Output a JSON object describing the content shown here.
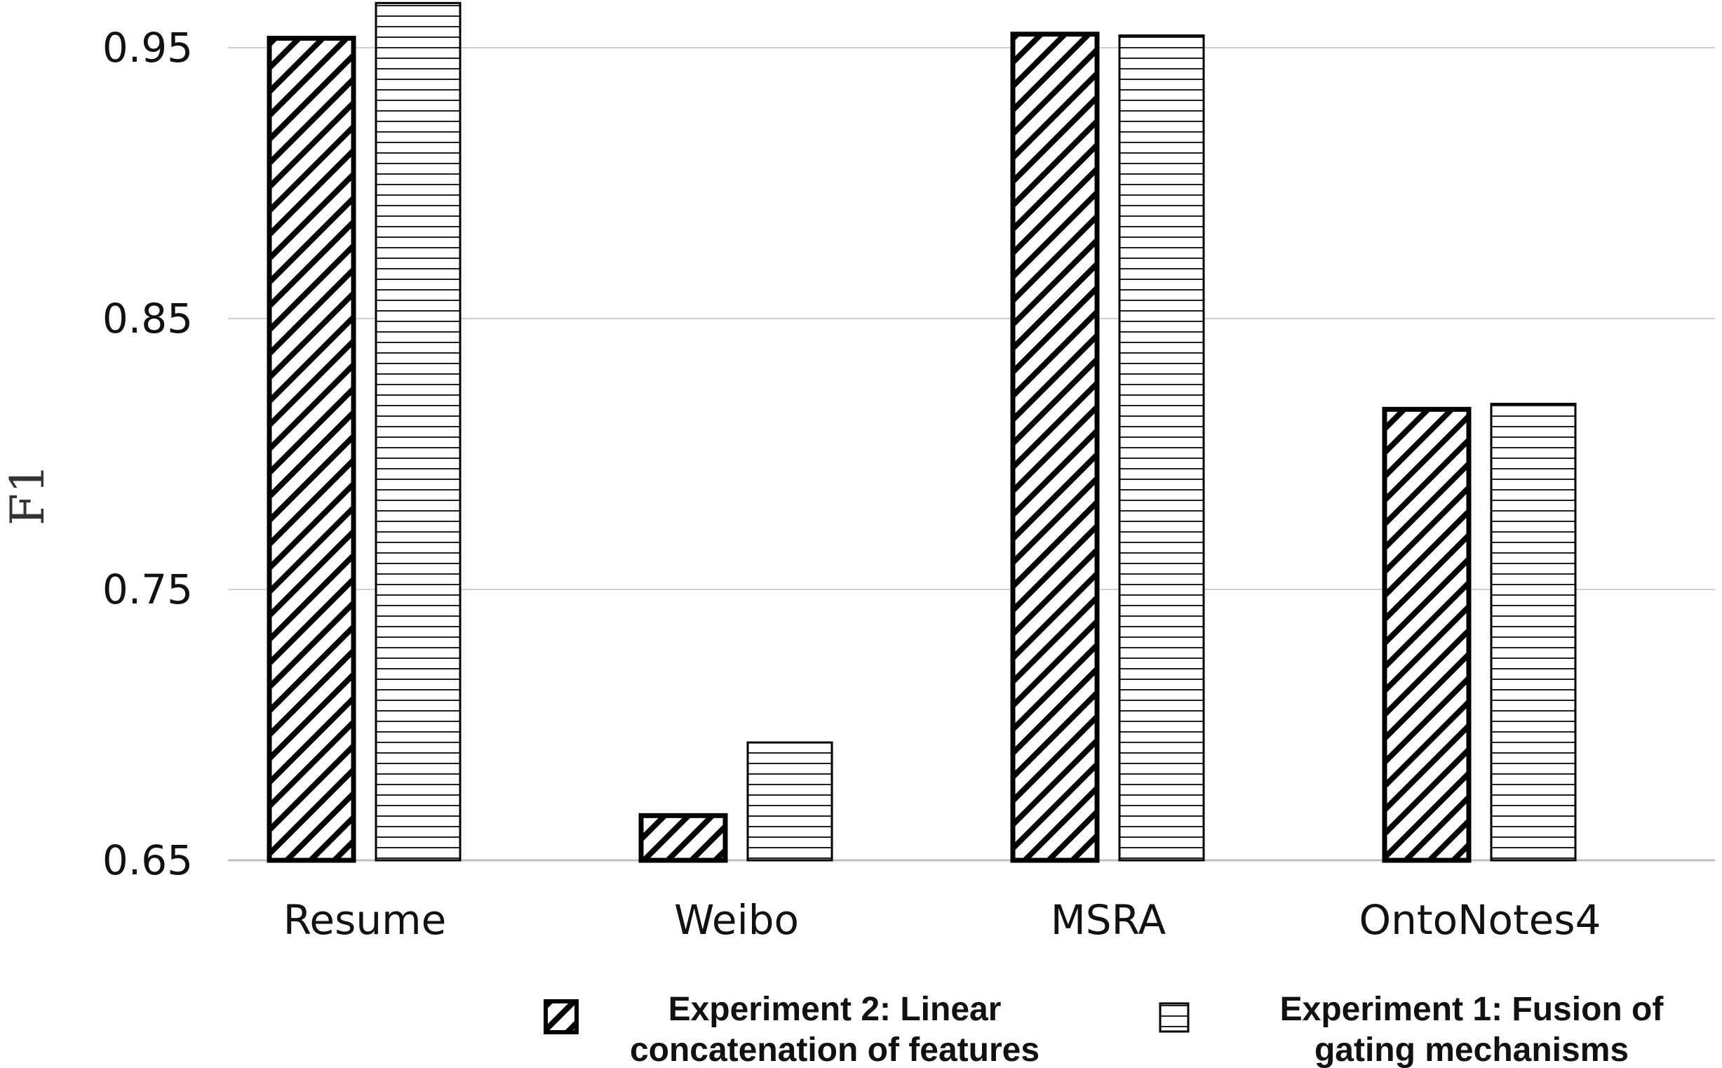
{
  "chart_data": {
    "type": "bar",
    "title": "",
    "xlabel": "",
    "ylabel": "F1",
    "ylim": [
      0.65,
      0.96
    ],
    "yticks": [
      "0.65",
      "0.75",
      "0.85",
      "0.95"
    ],
    "ytick_values": [
      0.65,
      0.75,
      0.85,
      0.95
    ],
    "categories": [
      "Resume",
      "Weibo",
      "MSRA",
      "OntoNotes4"
    ],
    "series": [
      {
        "name": "Experiment 2: Linear concatenation of features",
        "legend_lines": [
          "Experiment 2: Linear",
          "concatenation of features"
        ],
        "pattern": "diagonal-hatch",
        "values": [
          0.9535,
          0.6665,
          0.955,
          0.8165
        ]
      },
      {
        "name": "Experiment 1: Fusion of gating mechanisms",
        "legend_lines": [
          "Experiment 1: Fusion of",
          "gating mechanisms"
        ],
        "pattern": "horizontal-lines",
        "values": [
          0.9665,
          0.6935,
          0.9545,
          0.8185
        ]
      }
    ],
    "grid": true,
    "legend_position": "bottom"
  }
}
